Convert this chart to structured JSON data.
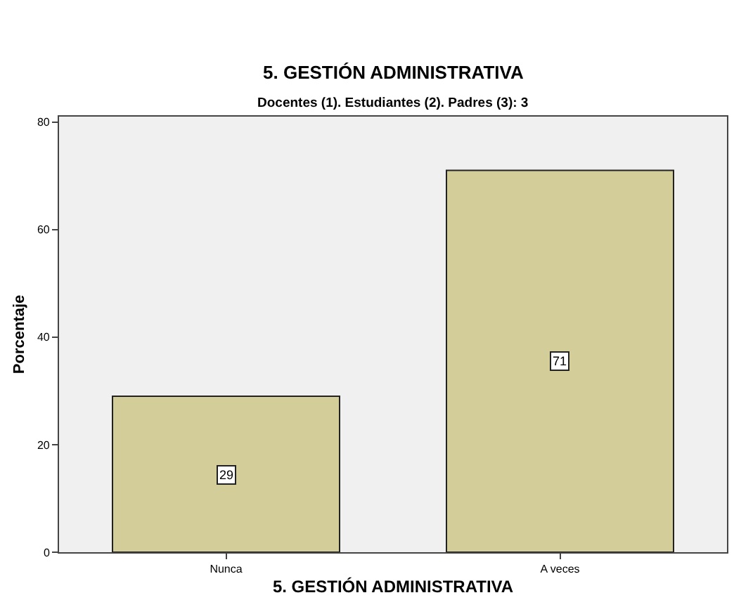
{
  "chart_data": {
    "type": "bar",
    "title": "5. GESTIÓN ADMINISTRATIVA",
    "subtitle": "Docentes (1). Estudiantes (2). Padres (3): 3",
    "xlabel": "5. GESTIÓN ADMINISTRATIVA",
    "ylabel": "Porcentaje",
    "categories": [
      "Nunca",
      "A veces"
    ],
    "values": [
      29,
      71
    ],
    "color": "#d3ce99",
    "ylim": [
      0,
      81
    ],
    "yticks": [
      0,
      20,
      40,
      60,
      80
    ],
    "grid": false,
    "legend": false,
    "data_labels": true
  }
}
